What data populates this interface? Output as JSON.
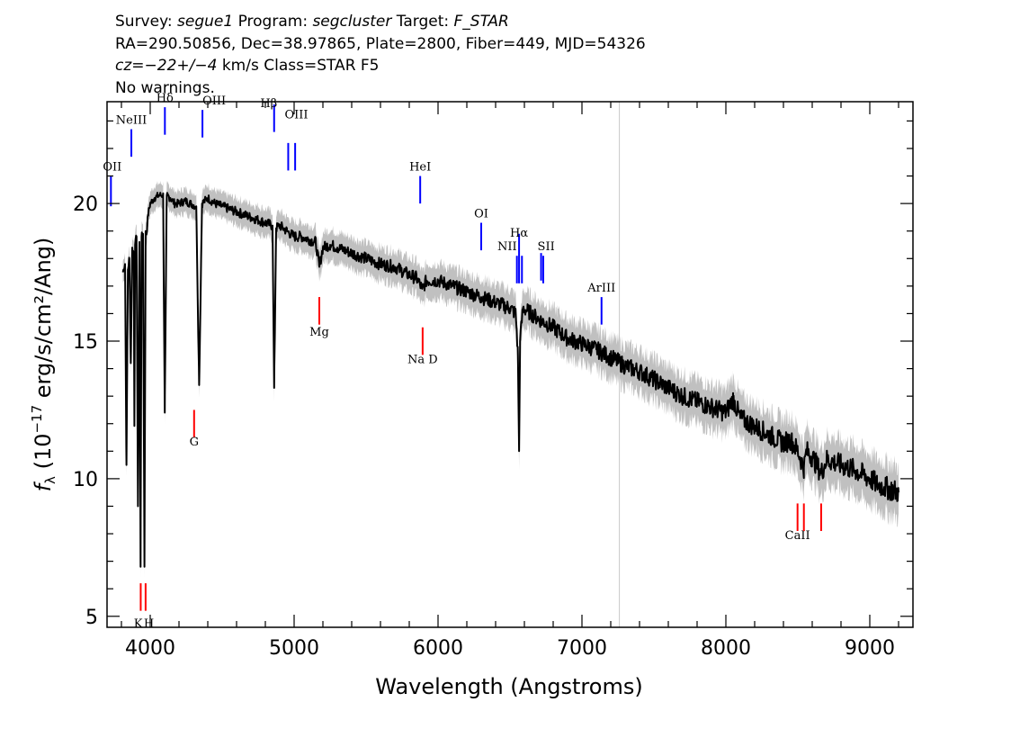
{
  "header": {
    "line1": [
      {
        "text": "Survey: ",
        "italic": false
      },
      {
        "text": "segue1",
        "italic": true
      },
      {
        "text": " Program: ",
        "italic": false
      },
      {
        "text": "segcluster",
        "italic": true
      },
      {
        "text": " Target: ",
        "italic": false
      },
      {
        "text": "F_STAR",
        "italic": true
      }
    ],
    "line2": "RA=290.50856, Dec=38.97865, Plate=2800, Fiber=449, MJD=54326",
    "line3": [
      {
        "text": "cz=",
        "italic": true
      },
      {
        "text": "−22+/−4",
        "italic": true
      },
      {
        "text": " km/s Class=STAR F5",
        "italic": false
      }
    ],
    "line4": "No warnings."
  },
  "chart_data": {
    "type": "line",
    "xlabel": "Wavelength (Angstroms)",
    "ylabel_parts": {
      "f": "f",
      "sub": "λ",
      "pre": " (10",
      "exp": "−17",
      "post": " erg/s/cm²/Ang)"
    },
    "xlim": [
      3700,
      9300
    ],
    "ylim": [
      4.6,
      23.7
    ],
    "x_ticks": [
      4000,
      5000,
      6000,
      7000,
      8000,
      9000
    ],
    "y_ticks": [
      5,
      10,
      15,
      20
    ],
    "x_minor_step": 200,
    "y_minor_step": 1,
    "grid": false,
    "reference_line_x": 7260,
    "colors": {
      "flux": "#000000",
      "error_band": "#c0c0c0",
      "emission": "#0000ff",
      "absorption": "#ff0000",
      "axes": "#000000",
      "reference": "#c8c8c8"
    },
    "series": [
      {
        "name": "",
        "x": [
          3810,
          3825,
          3835,
          3845,
          3855,
          3865,
          3875,
          3885,
          3890,
          3895,
          3905,
          3915,
          3925,
          3933,
          3940,
          3950,
          3960,
          3968,
          3975,
          3985,
          4000,
          4030,
          4060,
          4090,
          4101,
          4115,
          4140,
          4170,
          4200,
          4240,
          4280,
          4320,
          4340,
          4360,
          4400,
          4450,
          4500,
          4550,
          4600,
          4650,
          4700,
          4750,
          4800,
          4850,
          4861,
          4875,
          4900,
          4950,
          5000,
          5050,
          5100,
          5150,
          5175,
          5200,
          5250,
          5300,
          5400,
          5500,
          5600,
          5700,
          5800,
          5850,
          5890,
          5920,
          6000,
          6100,
          6200,
          6300,
          6400,
          6500,
          6540,
          6555,
          6563,
          6570,
          6590,
          6620,
          6700,
          6800,
          6900,
          7000,
          7100,
          7200,
          7300,
          7400,
          7500,
          7600,
          7700,
          7800,
          7900,
          8000,
          8050,
          8100,
          8200,
          8300,
          8400,
          8450,
          8500,
          8542,
          8560,
          8600,
          8662,
          8700,
          8800,
          8900,
          9000,
          9050,
          9100,
          9200
        ],
        "values": [
          17.5,
          17.8,
          10.5,
          17.6,
          18.0,
          14.2,
          18.4,
          18.2,
          12.0,
          18.5,
          18.8,
          9.0,
          18.6,
          6.8,
          18.8,
          18.9,
          6.8,
          19.0,
          18.9,
          19.6,
          20.0,
          20.2,
          20.3,
          20.3,
          12.4,
          20.3,
          20.2,
          20.0,
          20.0,
          20.1,
          20.0,
          19.9,
          13.4,
          20.0,
          20.2,
          20.0,
          19.9,
          19.8,
          19.7,
          19.6,
          19.5,
          19.4,
          19.3,
          19.2,
          13.3,
          19.1,
          19.2,
          19.0,
          18.8,
          18.8,
          18.7,
          18.6,
          17.7,
          18.4,
          18.5,
          18.4,
          18.2,
          18.0,
          17.8,
          17.7,
          17.4,
          17.3,
          16.9,
          17.2,
          17.2,
          17.0,
          16.8,
          16.6,
          16.4,
          16.2,
          16.0,
          14.5,
          11.0,
          15.0,
          16.2,
          16.1,
          15.8,
          15.5,
          15.1,
          14.9,
          14.7,
          14.4,
          14.1,
          13.9,
          13.6,
          13.3,
          13.0,
          12.8,
          12.6,
          12.4,
          12.9,
          12.2,
          11.9,
          11.6,
          11.3,
          11.4,
          11.0,
          10.4,
          11.0,
          10.8,
          10.2,
          10.7,
          10.5,
          10.3,
          10.0,
          9.8,
          9.7,
          9.5
        ]
      }
    ],
    "error_band": 0.4,
    "lines": [
      {
        "label": "OII",
        "wave": 3727,
        "kind": "emission",
        "y1": 19.9,
        "y2": 21.0,
        "label_y": 21.2,
        "anchor": "end",
        "dx": 12
      },
      {
        "label": "NeIII",
        "wave": 3869,
        "kind": "emission",
        "y1": 21.7,
        "y2": 22.7,
        "label_y": 22.9,
        "anchor": "middle",
        "dx": 0
      },
      {
        "label": "Hδ",
        "wave": 4102,
        "kind": "emission",
        "y1": 22.5,
        "y2": 23.5,
        "label_y": 23.7,
        "anchor": "middle",
        "dx": 0
      },
      {
        "label": "OIII",
        "wave": 4363,
        "kind": "emission",
        "y1": 22.4,
        "y2": 23.4,
        "label_y": 23.6,
        "anchor": "start",
        "dx": 0
      },
      {
        "label": "Hβ",
        "wave": 4861,
        "kind": "emission",
        "y1": 22.6,
        "y2": 23.6,
        "label_y": 23.5,
        "anchor": "middle",
        "dx": -6
      },
      {
        "label": "OIII",
        "wave": 4959,
        "kind": "emission",
        "y1": 21.2,
        "y2": 22.2,
        "label_y": 23.1,
        "anchor": "start",
        "dx": -4
      },
      {
        "label": "OIII",
        "wave": 5007,
        "kind": "emission",
        "y1": 21.2,
        "y2": 22.2,
        "label_y": null,
        "anchor": "start",
        "dx": 0
      },
      {
        "label": "HeI",
        "wave": 5876,
        "kind": "emission",
        "y1": 20.0,
        "y2": 21.0,
        "label_y": 21.2,
        "anchor": "middle",
        "dx": 0
      },
      {
        "label": "OI",
        "wave": 6300,
        "kind": "emission",
        "y1": 18.3,
        "y2": 19.3,
        "label_y": 19.5,
        "anchor": "middle",
        "dx": 0
      },
      {
        "label": "NII",
        "wave": 6548,
        "kind": "emission",
        "y1": 17.1,
        "y2": 18.1,
        "label_y": 18.3,
        "anchor": "end",
        "dx": 0
      },
      {
        "label": "Hα",
        "wave": 6563,
        "kind": "emission",
        "y1": 17.1,
        "y2": 18.9,
        "label_y": 18.8,
        "anchor": "middle",
        "dx": 0
      },
      {
        "label": "NII",
        "wave": 6583,
        "kind": "emission",
        "y1": 17.1,
        "y2": 18.1,
        "label_y": null,
        "anchor": "start",
        "dx": 0
      },
      {
        "label": "SII",
        "wave": 6716,
        "kind": "emission",
        "y1": 17.2,
        "y2": 18.2,
        "label_y": 18.3,
        "anchor": "start",
        "dx": -4
      },
      {
        "label": "SII",
        "wave": 6731,
        "kind": "emission",
        "y1": 17.1,
        "y2": 18.1,
        "label_y": null,
        "anchor": "start",
        "dx": 0
      },
      {
        "label": "ArIII",
        "wave": 7136,
        "kind": "emission",
        "y1": 15.6,
        "y2": 16.6,
        "label_y": 16.8,
        "anchor": "middle",
        "dx": 0
      },
      {
        "label": "K",
        "wave": 3934,
        "kind": "absorption",
        "y1": 5.2,
        "y2": 6.2,
        "label_y": 4.6,
        "anchor": "end",
        "dx": 2
      },
      {
        "label": "H",
        "wave": 3968,
        "kind": "absorption",
        "y1": 5.2,
        "y2": 6.2,
        "label_y": 4.6,
        "anchor": "start",
        "dx": -2
      },
      {
        "label": "G",
        "wave": 4305,
        "kind": "absorption",
        "y1": 11.5,
        "y2": 12.5,
        "label_y": 11.2,
        "anchor": "middle",
        "dx": 0
      },
      {
        "label": "Mg",
        "wave": 5175,
        "kind": "absorption",
        "y1": 15.6,
        "y2": 16.6,
        "label_y": 15.2,
        "anchor": "middle",
        "dx": 0
      },
      {
        "label": "Na D",
        "wave": 5893,
        "kind": "absorption",
        "y1": 14.5,
        "y2": 15.5,
        "label_y": 14.2,
        "anchor": "middle",
        "dx": 0
      },
      {
        "label": "CaII",
        "wave": 8498,
        "kind": "absorption",
        "y1": 8.1,
        "y2": 9.1,
        "label_y": 7.8,
        "anchor": "start",
        "dx": -14
      },
      {
        "label": "",
        "wave": 8542,
        "kind": "absorption",
        "y1": 8.1,
        "y2": 9.1,
        "label_y": null,
        "anchor": "start",
        "dx": 0
      },
      {
        "label": "",
        "wave": 8662,
        "kind": "absorption",
        "y1": 8.1,
        "y2": 9.1,
        "label_y": null,
        "anchor": "start",
        "dx": 0
      }
    ]
  }
}
